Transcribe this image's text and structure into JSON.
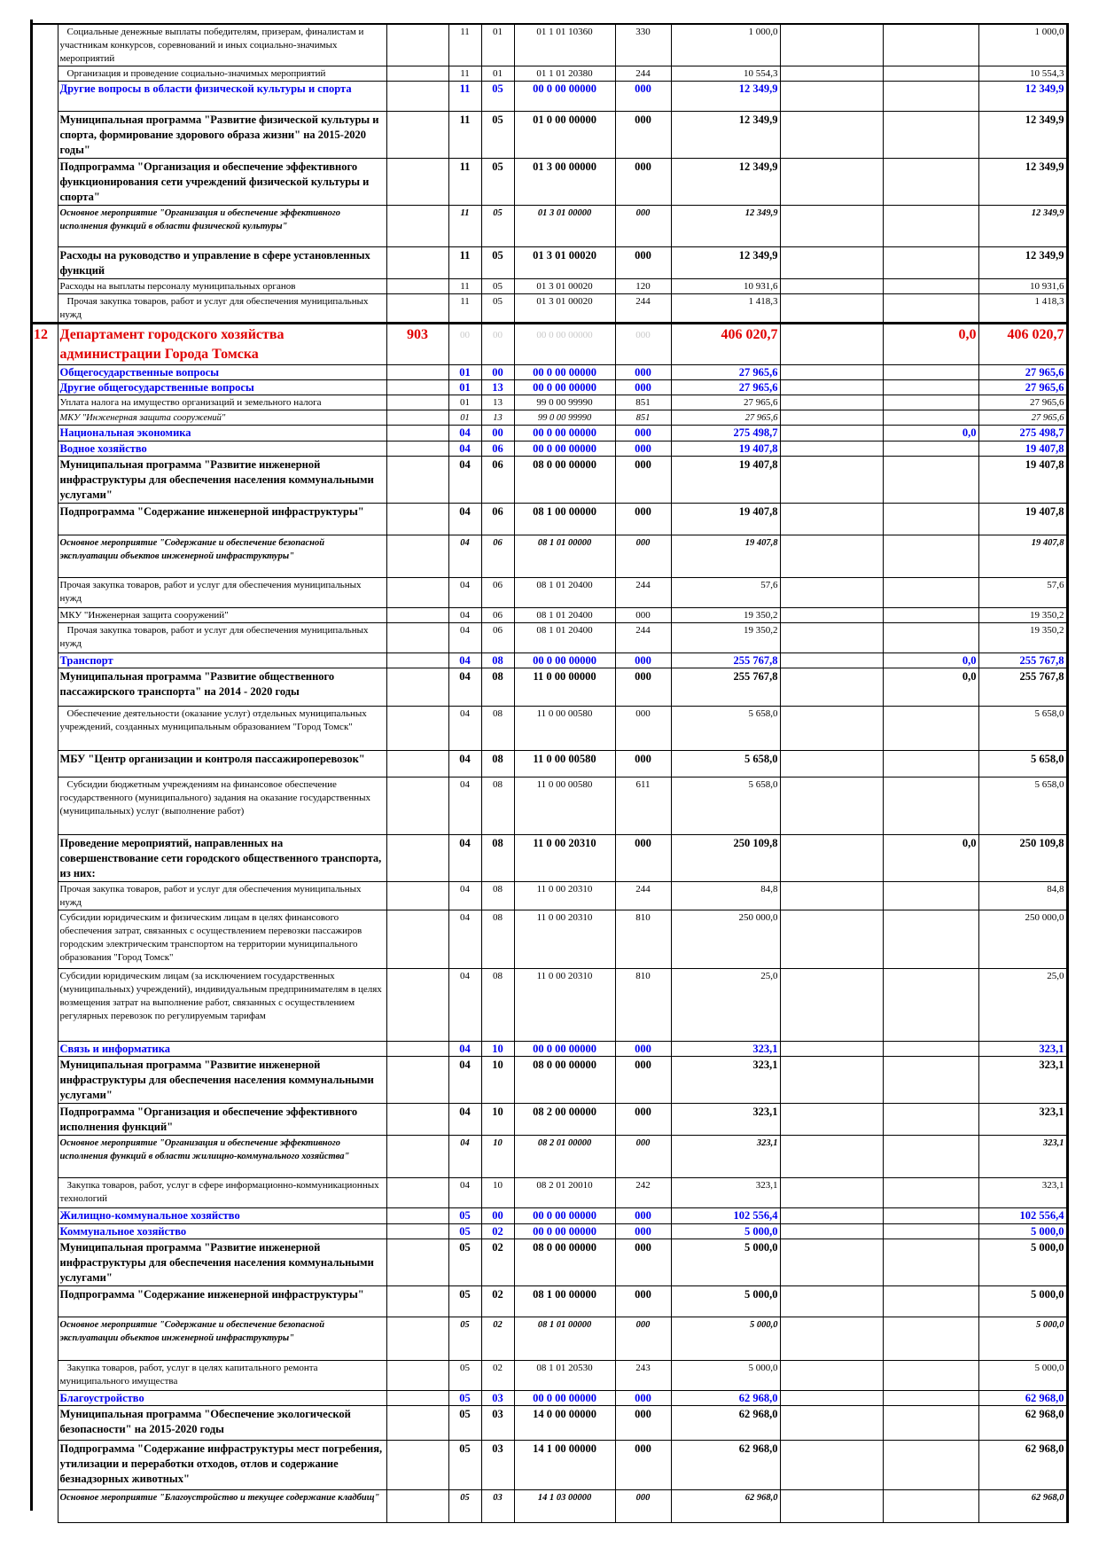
{
  "table": {
    "rows": [
      {
        "style": "n",
        "desc": "Социальные денежные выплаты победителям, призерам, финалистам и участникам конкурсов, соревнований и иных социально-значимых мероприятий",
        "rz": "11",
        "pr": "01",
        "csr": "01 1 01 10360",
        "vr": "330",
        "sum": "1 000,0",
        "c3": "",
        "total": "1 000,0"
      },
      {
        "style": "n",
        "desc": "Организация и проведение социально-значимых мероприятий",
        "rz": "11",
        "pr": "01",
        "csr": "01 1 01 20380",
        "vr": "244",
        "sum": "10 554,3",
        "c3": "",
        "total": "10 554,3"
      },
      {
        "style": "bl",
        "desc": "Другие вопросы в области физической культуры и спорта",
        "rz": "11",
        "pr": "05",
        "csr": "00 0 00 00000",
        "vr": "000",
        "sum": "12 349,9",
        "c3": "",
        "total": "12 349,9"
      },
      {
        "style": "b",
        "desc": "Муниципальная программа \"Развитие физической культуры и спорта, формирование здорового образа жизни\" на 2015-2020 годы\"",
        "rz": "11",
        "pr": "05",
        "csr": "01 0 00 00000",
        "vr": "000",
        "sum": "12 349,9",
        "c3": "",
        "total": "12 349,9"
      },
      {
        "style": "b",
        "desc": "Подпрограмма \"Организация и обеспечение эффективного функционирования сети учреждений физической культуры и спорта\"",
        "rz": "11",
        "pr": "05",
        "csr": "01 3 00 00000",
        "vr": "000",
        "sum": "12 349,9",
        "c3": "",
        "total": "12 349,9"
      },
      {
        "style": "i",
        "desc": "Основное мероприятие \"Организация и обеспечение эффективного исполнения функций в области физической культуры\"",
        "rz": "11",
        "pr": "05",
        "csr": "01 3 01 00000",
        "vr": "000",
        "sum": "12 349,9",
        "c3": "",
        "total": "12 349,9"
      },
      {
        "style": "b",
        "desc": "Расходы на руководство и управление в сфере установленных функций",
        "rz": "11",
        "pr": "05",
        "csr": "01 3 01 00020",
        "vr": "000",
        "sum": "12 349,9",
        "c3": "",
        "total": "12 349,9"
      },
      {
        "style": "n",
        "desc": "Расходы на выплаты персоналу муниципальных органов",
        "rz": "11",
        "pr": "05",
        "csr": "01 3 01 00020",
        "vr": "120",
        "sum": "10 931,6",
        "c3": "",
        "total": "10 931,6"
      },
      {
        "style": "n",
        "desc": "Прочая закупка товаров, работ и услуг для обеспечения муниципальных нужд",
        "rz": "11",
        "pr": "05",
        "csr": "01 3 01 00020",
        "vr": "244",
        "sum": "1 418,3",
        "c3": "",
        "total": "1 418,3"
      },
      {
        "style": "d",
        "num": "12",
        "desc": "Департамент городского хозяйства администрации Города Томска",
        "min": "903",
        "rz": "00",
        "pr": "00",
        "csr": "00 0 00 00000",
        "vr": "000",
        "sum": "406 020,7",
        "c3": "0,0",
        "total": "406 020,7"
      },
      {
        "style": "bl",
        "desc": "Общегосударственные вопросы",
        "rz": "01",
        "pr": "00",
        "csr": "00 0 00 00000",
        "vr": "000",
        "sum": "27 965,6",
        "c3": "",
        "total": "27 965,6"
      },
      {
        "style": "bl",
        "desc": "Другие общегосударственные вопросы",
        "rz": "01",
        "pr": "13",
        "csr": "00 0 00 00000",
        "vr": "000",
        "sum": "27 965,6",
        "c3": "",
        "total": "27 965,6"
      },
      {
        "style": "n",
        "desc": "Уплата налога на имущество организаций и земельного налога",
        "rz": "01",
        "pr": "13",
        "csr": "99 0 00 99990",
        "vr": "851",
        "sum": "27 965,6",
        "c3": "",
        "total": "27 965,6"
      },
      {
        "style": "mi",
        "desc": "МКУ \"Инженерная защита сооружений\"",
        "rz": "01",
        "pr": "13",
        "csr": "99 0 00 99990",
        "vr": "851",
        "sum": "27 965,6",
        "c3": "",
        "total": "27 965,6"
      },
      {
        "style": "bl",
        "desc": "Национальная экономика",
        "rz": "04",
        "pr": "00",
        "csr": "00 0 00 00000",
        "vr": "000",
        "sum": "275 498,7",
        "c3": "0,0",
        "total": "275 498,7"
      },
      {
        "style": "bl",
        "desc": "Водное хозяйство",
        "rz": "04",
        "pr": "06",
        "csr": "00 0 00 00000",
        "vr": "000",
        "sum": "19 407,8",
        "c3": "",
        "total": "19 407,8"
      },
      {
        "style": "b",
        "desc": "Муниципальная программа \"Развитие инженерной инфраструктуры для обеспечения населения коммунальными услугами\"",
        "rz": "04",
        "pr": "06",
        "csr": "08 0 00 00000",
        "vr": "000",
        "sum": "19 407,8",
        "c3": "",
        "total": "19 407,8"
      },
      {
        "style": "b",
        "desc": "Подпрограмма \"Содержание инженерной инфраструктуры\"",
        "rz": "04",
        "pr": "06",
        "csr": "08 1 00 00000",
        "vr": "000",
        "sum": "19 407,8",
        "c3": "",
        "total": "19 407,8"
      },
      {
        "style": "i",
        "desc": "Основное мероприятие \"Содержание и обеспечение безопасной эксплуатации объектов инженерной инфраструктуры\"",
        "rz": "04",
        "pr": "06",
        "csr": "08 1 01 00000",
        "vr": "000",
        "sum": "19 407,8",
        "c3": "",
        "total": "19 407,8"
      },
      {
        "style": "n",
        "desc": "Прочая закупка товаров, работ и услуг для обеспечения муниципальных нужд",
        "rz": "04",
        "pr": "06",
        "csr": "08 1 01 20400",
        "vr": "244",
        "sum": "57,6",
        "c3": "",
        "total": "57,6"
      },
      {
        "style": "n",
        "desc": "МКУ \"Инженерная защита сооружений\"",
        "rz": "04",
        "pr": "06",
        "csr": "08 1 01 20400",
        "vr": "000",
        "sum": "19 350,2",
        "c3": "",
        "total": "19 350,2"
      },
      {
        "style": "n",
        "desc": "Прочая закупка товаров, работ и услуг для обеспечения муниципальных нужд",
        "rz": "04",
        "pr": "06",
        "csr": "08 1 01 20400",
        "vr": "244",
        "sum": "19 350,2",
        "c3": "",
        "total": "19 350,2"
      },
      {
        "style": "bl",
        "desc": "Транспорт",
        "rz": "04",
        "pr": "08",
        "csr": "00 0 00 00000",
        "vr": "000",
        "sum": "255 767,8",
        "c3": "0,0",
        "total": "255 767,8"
      },
      {
        "style": "b",
        "desc": "Муниципальная программа \"Развитие общественного пассажирского транспорта\" на 2014 - 2020 годы",
        "rz": "04",
        "pr": "08",
        "csr": "11 0 00 00000",
        "vr": "000",
        "sum": "255 767,8",
        "c3": "0,0",
        "total": "255 767,8"
      },
      {
        "style": "n",
        "desc": "Обеспечение деятельности (оказание услуг) отдельных муниципальных учреждений, созданных муниципальным образованием \"Город Томск\"",
        "rz": "04",
        "pr": "08",
        "csr": "11 0 00 00580",
        "vr": "000",
        "sum": "5 658,0",
        "c3": "",
        "total": "5 658,0"
      },
      {
        "style": "b",
        "desc": "МБУ \"Центр организации и контроля пассажироперевозок\"",
        "rz": "04",
        "pr": "08",
        "csr": "11 0 00 00580",
        "vr": "000",
        "sum": "5 658,0",
        "c3": "",
        "total": "5 658,0"
      },
      {
        "style": "n",
        "desc": "Субсидии бюджетным учреждениям на финансовое обеспечение государственного (муниципального) задания на оказание государственных (муниципальных) услуг (выполнение работ)",
        "rz": "04",
        "pr": "08",
        "csr": "11 0 00 00580",
        "vr": "611",
        "sum": "5 658,0",
        "c3": "",
        "total": "5 658,0"
      },
      {
        "style": "b",
        "desc": "Проведение мероприятий, направленных на совершенствование сети городского общественного транспорта, из них:",
        "rz": "04",
        "pr": "08",
        "csr": "11 0 00 20310",
        "vr": "000",
        "sum": "250 109,8",
        "c3": "0,0",
        "total": "250 109,8"
      },
      {
        "style": "n",
        "desc": "Прочая закупка товаров, работ и услуг для обеспечения муниципальных нужд",
        "rz": "04",
        "pr": "08",
        "csr": "11 0 00 20310",
        "vr": "244",
        "sum": "84,8",
        "c3": "",
        "total": "84,8"
      },
      {
        "style": "n",
        "desc": "Субсидии юридическим и физическим лицам в целях финансового обеспечения затрат, связанных с осуществлением перевозки пассажиров городским электрическим транспортом на территории муниципального образования \"Город Томск\"",
        "rz": "04",
        "pr": "08",
        "csr": "11 0 00 20310",
        "vr": "810",
        "sum": "250 000,0",
        "c3": "",
        "total": "250 000,0"
      },
      {
        "style": "n",
        "desc": "Субсидии юридическим лицам (за исключением государственных (муниципальных) учреждений), индивидуальным предпринимателям в целях возмещения затрат на выполнение работ, связанных с осуществлением регулярных перевозок по регулируемым тарифам",
        "rz": "04",
        "pr": "08",
        "csr": "11 0 00 20310",
        "vr": "810",
        "sum": "25,0",
        "c3": "",
        "total": "25,0"
      },
      {
        "style": "bl",
        "desc": "Связь и информатика",
        "rz": "04",
        "pr": "10",
        "csr": "00 0 00 00000",
        "vr": "000",
        "sum": "323,1",
        "c3": "",
        "total": "323,1"
      },
      {
        "style": "b",
        "desc": "Муниципальная программа \"Развитие инженерной инфраструктуры для обеспечения населения коммунальными услугами\"",
        "rz": "04",
        "pr": "10",
        "csr": "08 0 00 00000",
        "vr": "000",
        "sum": "323,1",
        "c3": "",
        "total": "323,1"
      },
      {
        "style": "b",
        "desc": "Подпрограмма \"Организация и обеспечение эффективного исполнения функций\"",
        "rz": "04",
        "pr": "10",
        "csr": "08 2 00 00000",
        "vr": "000",
        "sum": "323,1",
        "c3": "",
        "total": "323,1"
      },
      {
        "style": "i",
        "desc": "Основное мероприятие \"Организация и обеспечение эффективного исполнения функций в области жилищно-коммунального хозяйства\"",
        "rz": "04",
        "pr": "10",
        "csr": "08 2 01 00000",
        "vr": "000",
        "sum": "323,1",
        "c3": "",
        "total": "323,1"
      },
      {
        "style": "n",
        "desc": "Закупка товаров, работ, услуг в сфере информационно-коммуникационных технологий",
        "rz": "04",
        "pr": "10",
        "csr": "08 2 01 20010",
        "vr": "242",
        "sum": "323,1",
        "c3": "",
        "total": "323,1"
      },
      {
        "style": "bl",
        "desc": "Жилищно-коммунальное хозяйство",
        "rz": "05",
        "pr": "00",
        "csr": "00 0 00 00000",
        "vr": "000",
        "sum": "102 556,4",
        "c3": "",
        "total": "102 556,4"
      },
      {
        "style": "bl",
        "desc": "Коммунальное хозяйство",
        "rz": "05",
        "pr": "02",
        "csr": "00 0 00 00000",
        "vr": "000",
        "sum": "5 000,0",
        "c3": "",
        "total": "5 000,0"
      },
      {
        "style": "b",
        "desc": "Муниципальная программа \"Развитие инженерной инфраструктуры для обеспечения населения коммунальными услугами\"",
        "rz": "05",
        "pr": "02",
        "csr": "08 0 00 00000",
        "vr": "000",
        "sum": "5 000,0",
        "c3": "",
        "total": "5 000,0"
      },
      {
        "style": "b",
        "desc": "Подпрограмма \"Содержание инженерной инфраструктуры\"",
        "rz": "05",
        "pr": "02",
        "csr": "08 1 00 00000",
        "vr": "000",
        "sum": "5 000,0",
        "c3": "",
        "total": "5 000,0"
      },
      {
        "style": "i",
        "desc": "Основное мероприятие \"Содержание и обеспечение безопасной эксплуатации объектов инженерной инфраструктуры\"",
        "rz": "05",
        "pr": "02",
        "csr": "08 1 01 00000",
        "vr": "000",
        "sum": "5 000,0",
        "c3": "",
        "total": "5 000,0"
      },
      {
        "style": "n",
        "desc": "Закупка товаров, работ, услуг в целях капитального ремонта муниципального имущества",
        "rz": "05",
        "pr": "02",
        "csr": "08 1 01 20530",
        "vr": "243",
        "sum": "5 000,0",
        "c3": "",
        "total": "5 000,0"
      },
      {
        "style": "bl",
        "desc": "Благоустройство",
        "rz": "05",
        "pr": "03",
        "csr": "00 0 00 00000",
        "vr": "000",
        "sum": "62 968,0",
        "c3": "",
        "total": "62 968,0"
      },
      {
        "style": "b",
        "desc": "Муниципальная программа \"Обеспечение экологической безопасности\" на 2015-2020 годы",
        "rz": "05",
        "pr": "03",
        "csr": "14 0 00 00000",
        "vr": "000",
        "sum": "62 968,0",
        "c3": "",
        "total": "62 968,0"
      },
      {
        "style": "b",
        "desc": "Подпрограмма \"Содержание инфраструктуры мест погребения, утилизации и переработки отходов, отлов и содержание безнадзорных животных\"",
        "rz": "05",
        "pr": "03",
        "csr": "14 1 00 00000",
        "vr": "000",
        "sum": "62 968,0",
        "c3": "",
        "total": "62 968,0"
      },
      {
        "style": "i",
        "desc": "Основное мероприятие \"Благоустройство и текущее содержание кладбищ\"",
        "rz": "05",
        "pr": "03",
        "csr": "14 1 03 00000",
        "vr": "000",
        "sum": "62 968,0",
        "c3": "",
        "total": "62 968,0"
      }
    ]
  }
}
